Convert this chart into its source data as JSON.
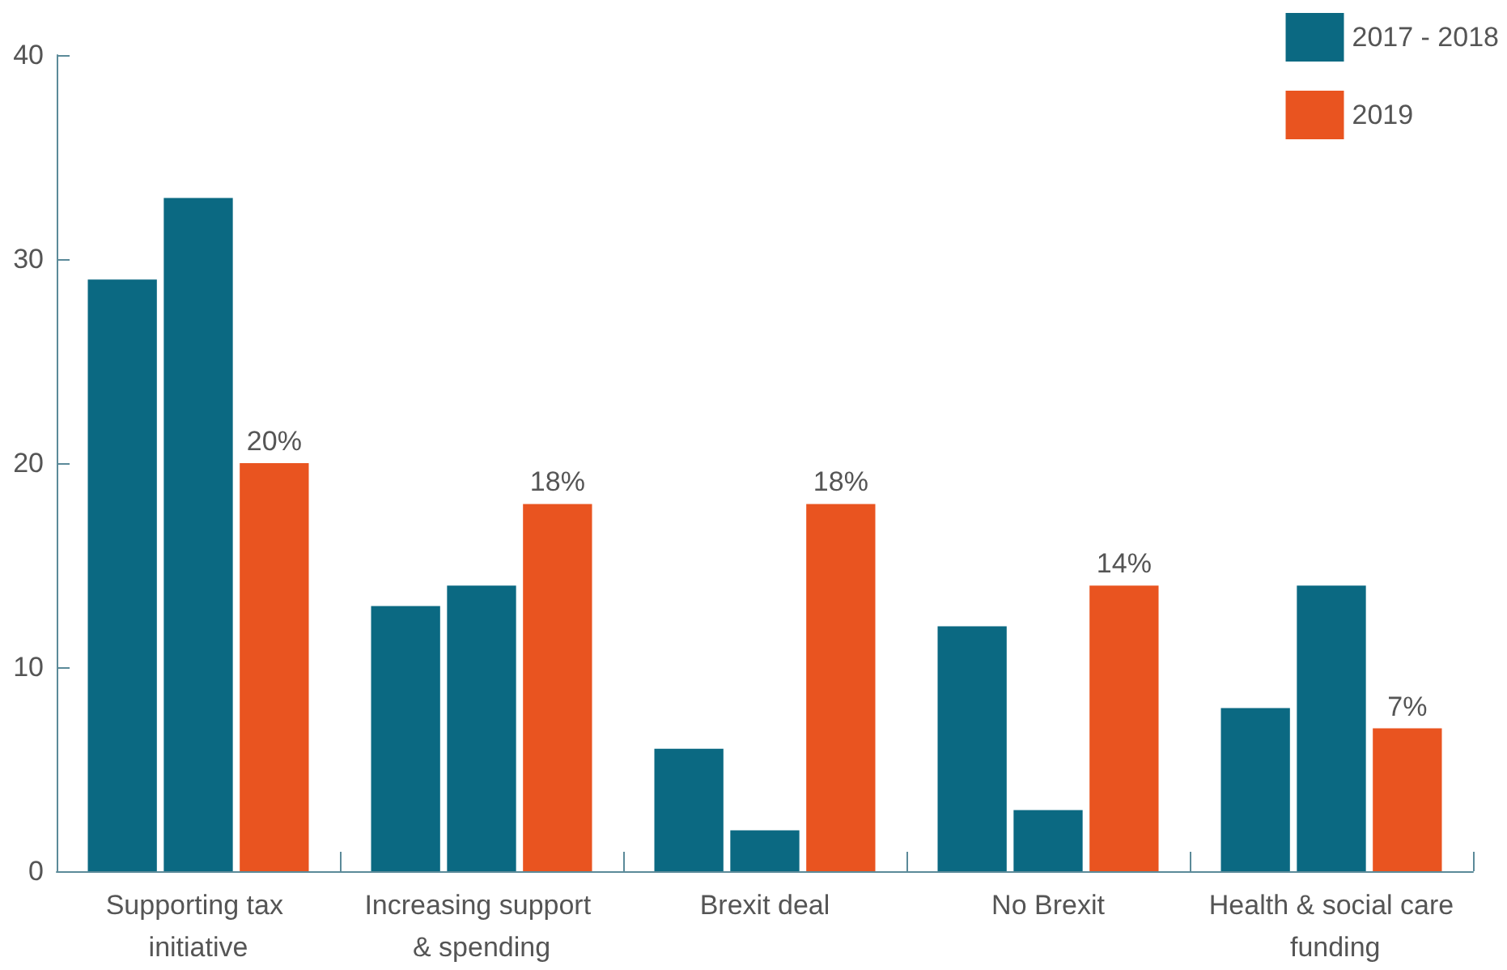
{
  "chart_data": {
    "type": "bar",
    "categories": [
      "Supporting tax initiative",
      "Increasing support & spending",
      "Brexit deal",
      "No Brexit",
      "Health & social care funding"
    ],
    "series": [
      {
        "name": "2017 - 2018",
        "color": "#0b6982",
        "values": [
          29,
          13,
          6,
          12,
          8
        ]
      },
      {
        "color": "#0b6982",
        "values": [
          33,
          14,
          2,
          3,
          14
        ]
      },
      {
        "name": "2019",
        "color": "#e95420",
        "values": [
          20,
          18,
          18,
          14,
          7
        ],
        "value_labels": [
          "20%",
          "18%",
          "18%",
          "14%",
          "7%"
        ]
      }
    ],
    "ylim": [
      0,
      40
    ],
    "yticks": [
      0,
      10,
      20,
      30,
      40
    ],
    "grid": false,
    "legend": "top right"
  }
}
